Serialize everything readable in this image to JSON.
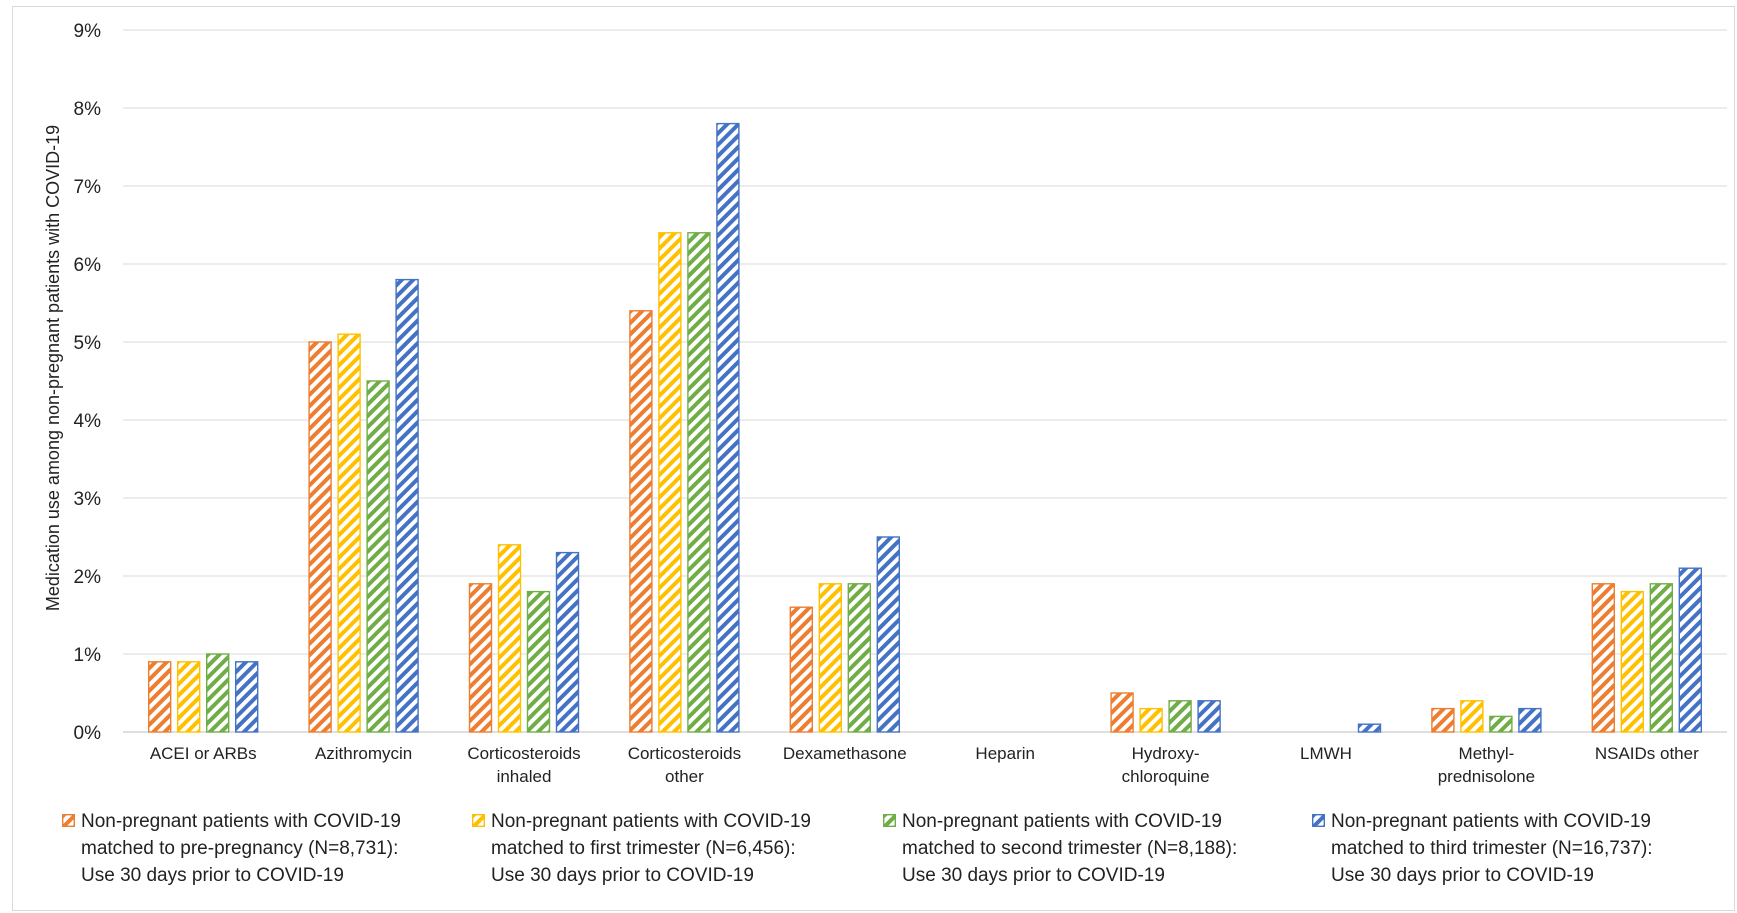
{
  "chart_data": {
    "type": "bar",
    "ylabel": "Medication use among non-pregnant patients with COVID-19",
    "xlabel": "",
    "ylim": [
      0,
      9
    ],
    "yticks": [
      "0%",
      "1%",
      "2%",
      "3%",
      "4%",
      "5%",
      "6%",
      "7%",
      "8%",
      "9%"
    ],
    "grid": true,
    "legend_position": "bottom",
    "categories": [
      [
        "ACEI or ARBs"
      ],
      [
        "Azithromycin"
      ],
      [
        "Corticosteroids",
        "inhaled"
      ],
      [
        "Corticosteroids",
        "other"
      ],
      [
        "Dexamethasone"
      ],
      [
        "Heparin"
      ],
      [
        "Hydroxy-",
        "chloroquine"
      ],
      [
        "LMWH"
      ],
      [
        "Methyl-",
        "prednisolone"
      ],
      [
        "NSAIDs other"
      ]
    ],
    "series": [
      {
        "name": [
          "Non-pregnant patients with COVID-19",
          "matched to pre-pregnancy (N=8,731):",
          "Use 30 days prior to COVID-19"
        ],
        "color": "#ED7D31",
        "pattern": "diagonal-stripe",
        "values": [
          0.9,
          5.0,
          1.9,
          5.4,
          1.6,
          0,
          0.5,
          0,
          0.3,
          1.9
        ]
      },
      {
        "name": [
          "Non-pregnant patients with COVID-19",
          "matched to first trimester (N=6,456):",
          "Use 30 days prior to COVID-19"
        ],
        "color": "#FFC000",
        "pattern": "diagonal-stripe",
        "values": [
          0.9,
          5.1,
          2.4,
          6.4,
          1.9,
          0,
          0.3,
          0,
          0.4,
          1.8
        ]
      },
      {
        "name": [
          "Non-pregnant patients with COVID-19",
          "matched to second trimester (N=8,188):",
          "Use 30 days prior to COVID-19"
        ],
        "color": "#70AD47",
        "pattern": "diagonal-stripe",
        "values": [
          1.0,
          4.5,
          1.8,
          6.4,
          1.9,
          0,
          0.4,
          0,
          0.2,
          1.9
        ]
      },
      {
        "name": [
          "Non-pregnant patients with COVID-19",
          "matched to third trimester (N=16,737):",
          "Use 30 days prior to COVID-19"
        ],
        "color": "#4472C4",
        "pattern": "diagonal-stripe",
        "values": [
          0.9,
          5.8,
          2.3,
          7.8,
          2.5,
          0,
          0.4,
          0.1,
          0.3,
          2.1
        ]
      }
    ]
  }
}
